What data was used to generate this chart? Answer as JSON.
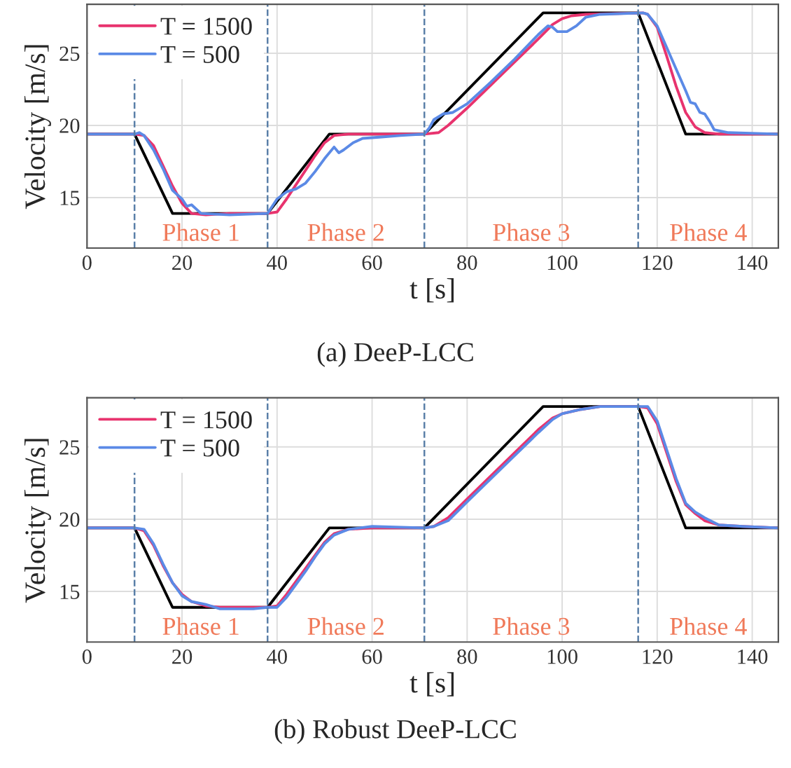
{
  "chart_data": [
    {
      "type": "line",
      "title": "(a) DeeP-LCC",
      "xlabel": "t [s]",
      "ylabel": "Velocity [m/s]",
      "xlim": [
        0,
        145.5
      ],
      "ylim": [
        11.5,
        28.4
      ],
      "xticks": [
        0,
        20,
        40,
        60,
        80,
        100,
        120,
        140
      ],
      "yticks": [
        15,
        20,
        25
      ],
      "grid": true,
      "legend": "top left",
      "line_style": "solid",
      "marker": "none",
      "series": [
        {
          "color": "#000000",
          "x": [
            0,
            10,
            18,
            38,
            51,
            71,
            96,
            116,
            126,
            145.5
          ],
          "values": [
            19.4,
            19.4,
            13.9,
            13.9,
            19.4,
            19.4,
            27.8,
            27.8,
            19.4,
            19.4
          ]
        },
        {
          "name": "T = 1500",
          "color": "#e8336e",
          "x": [
            0,
            10,
            12,
            14,
            16,
            18,
            20,
            22,
            25,
            30,
            38,
            40,
            42,
            44,
            46,
            48,
            50,
            52,
            55,
            71,
            74,
            76,
            80,
            85,
            90,
            95,
            98,
            100,
            102,
            105,
            117,
            118,
            120,
            122,
            124,
            126,
            128,
            130,
            133,
            145.5
          ],
          "values": [
            19.4,
            19.4,
            19.3,
            18.6,
            17.2,
            15.8,
            14.6,
            13.9,
            13.8,
            13.9,
            13.9,
            14.0,
            14.9,
            15.9,
            16.9,
            17.9,
            18.8,
            19.3,
            19.4,
            19.4,
            19.5,
            20.0,
            21.2,
            22.8,
            24.4,
            26.0,
            27.0,
            27.4,
            27.6,
            27.7,
            27.8,
            27.7,
            26.8,
            24.8,
            22.7,
            20.9,
            19.9,
            19.5,
            19.4,
            19.4
          ]
        },
        {
          "name": "T = 500",
          "color": "#5b8ae6",
          "x": [
            0,
            10,
            11,
            12,
            14,
            16,
            18,
            19,
            20,
            21,
            22,
            23,
            24,
            30,
            38,
            39,
            40,
            42,
            44,
            46,
            48,
            50,
            52,
            53,
            54,
            56,
            58,
            62,
            66,
            71,
            72,
            73,
            75,
            77,
            80,
            85,
            90,
            95,
            97,
            98,
            99,
            101,
            103,
            105,
            108,
            117,
            118,
            120,
            122,
            124,
            126,
            127,
            128,
            129,
            130,
            131,
            132,
            135,
            145.5
          ],
          "values": [
            19.4,
            19.4,
            19.5,
            19.3,
            18.3,
            17.0,
            15.5,
            15.2,
            14.9,
            14.4,
            14.5,
            14.2,
            13.9,
            13.8,
            13.9,
            14.4,
            14.9,
            15.4,
            15.6,
            16.0,
            16.8,
            17.7,
            18.5,
            18.1,
            18.3,
            18.8,
            19.1,
            19.2,
            19.3,
            19.4,
            19.8,
            20.4,
            20.8,
            20.9,
            21.5,
            23.0,
            24.6,
            26.3,
            26.9,
            26.8,
            26.5,
            26.5,
            26.9,
            27.5,
            27.7,
            27.8,
            27.7,
            26.9,
            25.4,
            23.9,
            22.4,
            21.6,
            21.5,
            20.9,
            20.8,
            20.3,
            19.7,
            19.5,
            19.4
          ]
        }
      ],
      "ref_lines": [
        {
          "axis": "x",
          "value": 10,
          "color": "#5a7fa8",
          "line_style": "dashed"
        },
        {
          "axis": "x",
          "value": 38,
          "color": "#5a7fa8",
          "line_style": "dashed"
        },
        {
          "axis": "x",
          "value": 71,
          "color": "#5a7fa8",
          "line_style": "dashed"
        },
        {
          "axis": "x",
          "value": 116,
          "color": "#5a7fa8",
          "line_style": "dashed"
        }
      ],
      "annotations": [
        "Phase 1",
        "Phase 2",
        "Phase 3",
        "Phase 4"
      ]
    },
    {
      "type": "line",
      "title": "(b) Robust DeeP-LCC",
      "xlabel": "t [s]",
      "ylabel": "Velocity [m/s]",
      "xlim": [
        0,
        145.5
      ],
      "ylim": [
        11.5,
        28.4
      ],
      "xticks": [
        0,
        20,
        40,
        60,
        80,
        100,
        120,
        140
      ],
      "yticks": [
        15,
        20,
        25
      ],
      "grid": true,
      "legend": "top left",
      "line_style": "solid",
      "marker": "none",
      "series": [
        {
          "color": "#000000",
          "x": [
            0,
            10,
            18,
            38,
            51,
            71,
            96,
            116,
            126,
            145.5
          ],
          "values": [
            19.4,
            19.4,
            13.9,
            13.9,
            19.4,
            19.4,
            27.8,
            27.8,
            19.4,
            19.4
          ]
        },
        {
          "name": "T = 1500",
          "color": "#e8336e",
          "x": [
            0,
            10,
            12,
            14,
            16,
            18,
            20,
            22,
            25,
            28,
            38,
            40,
            42,
            44,
            46,
            48,
            50,
            52,
            55,
            60,
            71,
            73,
            76,
            80,
            85,
            90,
            95,
            98,
            100,
            104,
            108,
            116,
            118,
            120,
            122,
            124,
            126,
            128,
            130,
            133,
            138,
            145.5
          ],
          "values": [
            19.4,
            19.4,
            19.2,
            18.2,
            16.8,
            15.6,
            14.8,
            14.3,
            14.0,
            13.9,
            13.9,
            14.0,
            14.8,
            15.7,
            16.6,
            17.5,
            18.4,
            19.0,
            19.3,
            19.4,
            19.4,
            19.5,
            20.1,
            21.4,
            23.0,
            24.6,
            26.2,
            27.0,
            27.3,
            27.6,
            27.8,
            27.8,
            27.7,
            26.6,
            24.6,
            22.6,
            21.0,
            20.4,
            19.9,
            19.6,
            19.5,
            19.4
          ]
        },
        {
          "name": "T = 500",
          "color": "#5b8ae6",
          "x": [
            0,
            10,
            12,
            14,
            16,
            18,
            20,
            22,
            25,
            28,
            35,
            38,
            40,
            42,
            44,
            46,
            48,
            50,
            52,
            55,
            60,
            71,
            73,
            76,
            80,
            85,
            90,
            95,
            98,
            100,
            104,
            108,
            118,
            120,
            122,
            124,
            126,
            128,
            130,
            133,
            138,
            145.5
          ],
          "values": [
            19.4,
            19.4,
            19.3,
            18.3,
            16.9,
            15.6,
            14.7,
            14.3,
            14.1,
            13.8,
            13.8,
            13.9,
            13.9,
            14.6,
            15.5,
            16.4,
            17.4,
            18.3,
            18.9,
            19.3,
            19.5,
            19.4,
            19.5,
            19.9,
            21.2,
            22.8,
            24.4,
            26.0,
            26.9,
            27.3,
            27.6,
            27.8,
            27.8,
            26.8,
            24.8,
            22.8,
            21.1,
            20.5,
            20.1,
            19.6,
            19.5,
            19.4
          ]
        }
      ],
      "ref_lines": [
        {
          "axis": "x",
          "value": 10,
          "color": "#5a7fa8",
          "line_style": "dashed"
        },
        {
          "axis": "x",
          "value": 38,
          "color": "#5a7fa8",
          "line_style": "dashed"
        },
        {
          "axis": "x",
          "value": 71,
          "color": "#5a7fa8",
          "line_style": "dashed"
        },
        {
          "axis": "x",
          "value": 116,
          "color": "#5a7fa8",
          "line_style": "dashed"
        }
      ],
      "annotations": [
        "Phase 1",
        "Phase 2",
        "Phase 3",
        "Phase 4"
      ]
    }
  ]
}
